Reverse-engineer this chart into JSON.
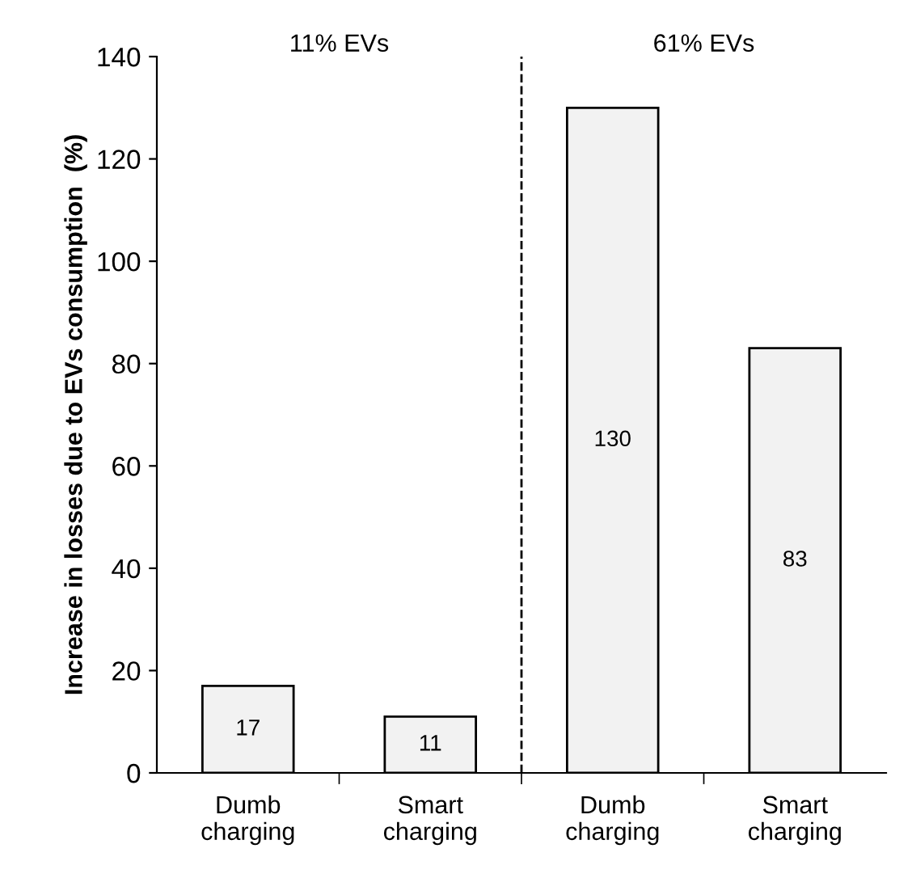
{
  "chart_data": {
    "type": "bar",
    "ylabel": "Increase in losses due to EVs consumption  (%)",
    "categories": [
      "Dumb\ncharging",
      "Smart\ncharging",
      "Dumb\ncharging",
      "Smart\ncharging"
    ],
    "values": [
      17,
      11,
      130,
      83
    ],
    "color": "#f2f2f2",
    "data_labels": true,
    "ylim": [
      0,
      140
    ],
    "yticks": [
      0,
      20,
      40,
      60,
      80,
      100,
      120,
      140
    ],
    "grid": false,
    "legend": false,
    "annotations": [
      "11% EVs",
      "61% EVs"
    ]
  }
}
